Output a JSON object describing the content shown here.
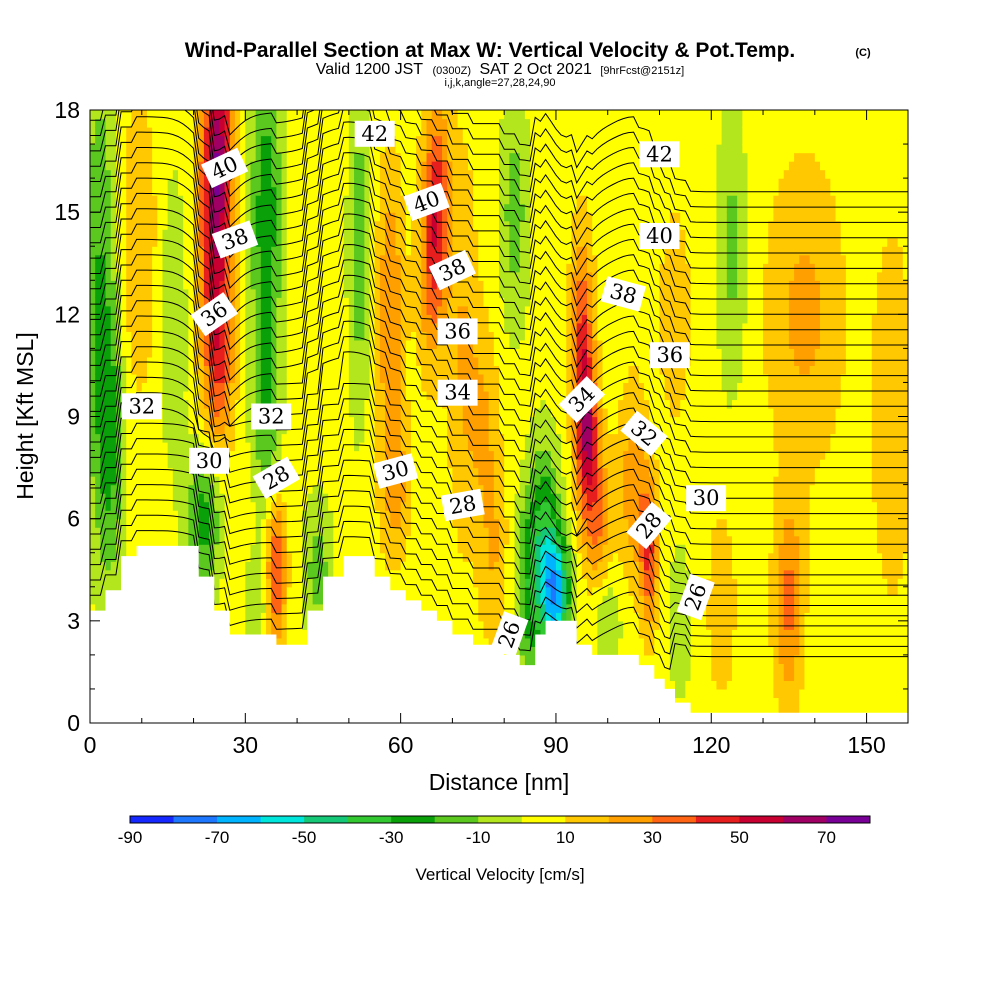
{
  "chart_data": {
    "type": "heatmap",
    "title": "Wind-Parallel Section at Max W: Vertical Velocity & Pot.Temp.",
    "title_tag": "(C)",
    "subtitle_prefix": "Valid 1200 JST",
    "subtitle_utc": "(0300Z)",
    "subtitle_date": "SAT 2 Oct 2021",
    "subtitle_fcst": "[9hrFcst@2151z]",
    "subtitle2": "i,j,k,angle=27,28,24,90",
    "xlabel": "Distance [nm]",
    "ylabel": "Height [Kft MSL]",
    "xlim": [
      0,
      158
    ],
    "ylim": [
      0,
      18
    ],
    "xticks": [
      0,
      30,
      60,
      90,
      120,
      150
    ],
    "yticks": [
      0,
      3,
      6,
      9,
      12,
      15,
      18
    ],
    "colorbar": {
      "title": "Vertical Velocity [cm/s]",
      "ticks": [
        -90,
        -70,
        -50,
        -30,
        -10,
        10,
        30,
        50,
        70
      ],
      "levels": [
        -90,
        -80,
        -70,
        -60,
        -50,
        -40,
        -30,
        -20,
        -10,
        0,
        10,
        20,
        30,
        40,
        50,
        60,
        70
      ],
      "colors": [
        "#1428ff",
        "#1e78ff",
        "#00b4ff",
        "#00e6dc",
        "#14c878",
        "#32c832",
        "#0aa00a",
        "#5ac81e",
        "#b4e61e",
        "#ffff00",
        "#ffc800",
        "#ffa000",
        "#ff6414",
        "#e61e1e",
        "#c80032",
        "#a00064",
        "#780096"
      ]
    },
    "background_velocity": 5,
    "velocity_features": [
      {
        "x": 2,
        "y": 13,
        "w": -25,
        "sx": 2.5,
        "sy": 5
      },
      {
        "x": 4,
        "y": 8,
        "w": -20,
        "sx": 2,
        "sy": 3
      },
      {
        "x": 9,
        "y": 14,
        "w": 15,
        "sx": 3,
        "sy": 3
      },
      {
        "x": 16,
        "y": 12,
        "w": -15,
        "sx": 2,
        "sy": 3
      },
      {
        "x": 24,
        "y": 14.5,
        "w": 42,
        "sx": 2.2,
        "sy": 3
      },
      {
        "x": 25,
        "y": 17,
        "w": 35,
        "sx": 2,
        "sy": 2
      },
      {
        "x": 25,
        "y": 10.5,
        "w": 25,
        "sx": 2,
        "sy": 2
      },
      {
        "x": 34,
        "y": 15,
        "w": -32,
        "sx": 2.2,
        "sy": 3.5
      },
      {
        "x": 34,
        "y": 9,
        "w": -20,
        "sx": 2,
        "sy": 2
      },
      {
        "x": 22,
        "y": 6,
        "w": -30,
        "sx": 2.5,
        "sy": 1.5
      },
      {
        "x": 36,
        "y": 4.5,
        "w": 38,
        "sx": 1.3,
        "sy": 1.5
      },
      {
        "x": 32,
        "y": 3.5,
        "w": -15,
        "sx": 1.5,
        "sy": 1
      },
      {
        "x": 44,
        "y": 4.5,
        "w": -20,
        "sx": 2,
        "sy": 1.5
      },
      {
        "x": 52,
        "y": 14,
        "w": -22,
        "sx": 1.5,
        "sy": 3.5
      },
      {
        "x": 58,
        "y": 12,
        "w": 25,
        "sx": 1.8,
        "sy": 3
      },
      {
        "x": 59,
        "y": 7,
        "w": 18,
        "sx": 2,
        "sy": 1.5
      },
      {
        "x": 67,
        "y": 15.5,
        "w": 35,
        "sx": 1.8,
        "sy": 2
      },
      {
        "x": 66,
        "y": 13,
        "w": 22,
        "sx": 2,
        "sy": 2
      },
      {
        "x": 72,
        "y": 11,
        "w": 15,
        "sx": 2,
        "sy": 4
      },
      {
        "x": 76,
        "y": 9,
        "w": 15,
        "sx": 2,
        "sy": 2
      },
      {
        "x": 82,
        "y": 15,
        "w": -20,
        "sx": 2,
        "sy": 2.5
      },
      {
        "x": 78,
        "y": 5,
        "w": 15,
        "sx": 2,
        "sy": 2
      },
      {
        "x": 85,
        "y": 4,
        "w": -30,
        "sx": 2,
        "sy": 2
      },
      {
        "x": 88,
        "y": 5.5,
        "w": -32,
        "sx": 2,
        "sy": 2
      },
      {
        "x": 90,
        "y": 3.8,
        "w": -65,
        "sx": 1.8,
        "sy": 1.2
      },
      {
        "x": 96,
        "y": 8.5,
        "w": 50,
        "sx": 1.5,
        "sy": 1.5
      },
      {
        "x": 95,
        "y": 11.5,
        "w": 35,
        "sx": 1.5,
        "sy": 2
      },
      {
        "x": 98,
        "y": 6,
        "w": 25,
        "sx": 2,
        "sy": 1.5
      },
      {
        "x": 105,
        "y": 7,
        "w": 22,
        "sx": 2,
        "sy": 2
      },
      {
        "x": 108,
        "y": 5,
        "w": 35,
        "sx": 1.2,
        "sy": 1.5
      },
      {
        "x": 100,
        "y": 3,
        "w": -15,
        "sx": 2,
        "sy": 1
      },
      {
        "x": 114,
        "y": 3,
        "w": -15,
        "sx": 1.5,
        "sy": 1.5
      },
      {
        "x": 113,
        "y": 12,
        "w": 15,
        "sx": 2,
        "sy": 2
      },
      {
        "x": 124,
        "y": 14,
        "w": -18,
        "sx": 2,
        "sy": 3
      },
      {
        "x": 122,
        "y": 3.5,
        "w": 12,
        "sx": 2,
        "sy": 2
      },
      {
        "x": 135,
        "y": 3.5,
        "w": 28,
        "sx": 2,
        "sy": 2
      },
      {
        "x": 138,
        "y": 12,
        "w": 18,
        "sx": 5,
        "sy": 3
      },
      {
        "x": 145,
        "y": 2.5,
        "w": -5,
        "sx": 4,
        "sy": 1.5
      },
      {
        "x": 155,
        "y": 9,
        "w": 12,
        "sx": 3,
        "sy": 4
      }
    ],
    "terrain": [
      [
        0,
        3.3
      ],
      [
        3,
        3.3
      ],
      [
        3,
        3.9
      ],
      [
        6,
        3.9
      ],
      [
        6,
        4.9
      ],
      [
        9,
        4.9
      ],
      [
        9,
        5.2
      ],
      [
        21,
        5.2
      ],
      [
        21,
        4.3
      ],
      [
        24,
        4.3
      ],
      [
        24,
        3.3
      ],
      [
        27,
        3.3
      ],
      [
        27,
        2.6
      ],
      [
        30,
        2.6
      ],
      [
        30,
        2.6
      ],
      [
        36,
        2.6
      ],
      [
        36,
        2.3
      ],
      [
        42,
        2.3
      ],
      [
        42,
        3.3
      ],
      [
        45,
        3.3
      ],
      [
        45,
        4.3
      ],
      [
        49,
        4.3
      ],
      [
        49,
        4.9
      ],
      [
        55,
        4.9
      ],
      [
        55,
        4.3
      ],
      [
        58,
        4.3
      ],
      [
        58,
        3.9
      ],
      [
        61,
        3.9
      ],
      [
        61,
        3.6
      ],
      [
        64,
        3.6
      ],
      [
        64,
        3.3
      ],
      [
        67,
        3.3
      ],
      [
        67,
        3.0
      ],
      [
        70,
        3.0
      ],
      [
        70,
        2.6
      ],
      [
        74,
        2.6
      ],
      [
        74,
        2.3
      ],
      [
        80,
        2.3
      ],
      [
        80,
        2.0
      ],
      [
        83,
        2.0
      ],
      [
        83,
        1.7
      ],
      [
        86,
        1.7
      ],
      [
        86,
        2.6
      ],
      [
        88,
        2.6
      ],
      [
        88,
        3.0
      ],
      [
        94,
        3.0
      ],
      [
        94,
        2.3
      ],
      [
        97,
        2.3
      ],
      [
        97,
        2.0
      ],
      [
        106,
        2.0
      ],
      [
        106,
        1.7
      ],
      [
        109,
        1.7
      ],
      [
        109,
        1.3
      ],
      [
        111,
        1.3
      ],
      [
        111,
        1.0
      ],
      [
        113,
        1.0
      ],
      [
        113,
        0.6
      ],
      [
        116,
        0.6
      ],
      [
        116,
        0.3
      ],
      [
        158,
        0.3
      ]
    ],
    "theta_levels": [
      26,
      26.5,
      27,
      27.5,
      28,
      28.5,
      29,
      29.5,
      30,
      30.5,
      31,
      31.5,
      32,
      32.5,
      33,
      33.5,
      34,
      34.5,
      35,
      35.5,
      36,
      36.5,
      37,
      37.5,
      38,
      38.5,
      39,
      39.5,
      40,
      40.5,
      41,
      41.5,
      42,
      42.5
    ],
    "contour_labels": [
      {
        "text": "42",
        "x": 55,
        "y": 17.3,
        "rot": 0
      },
      {
        "text": "42",
        "x": 110,
        "y": 16.7,
        "rot": 0
      },
      {
        "text": "40",
        "x": 26,
        "y": 16.3,
        "rot": -25
      },
      {
        "text": "40",
        "x": 65,
        "y": 15.3,
        "rot": -20
      },
      {
        "text": "40",
        "x": 110,
        "y": 14.3,
        "rot": 0
      },
      {
        "text": "38",
        "x": 28,
        "y": 14.2,
        "rot": -20
      },
      {
        "text": "38",
        "x": 70,
        "y": 13.3,
        "rot": -25
      },
      {
        "text": "38",
        "x": 103,
        "y": 12.6,
        "rot": 15
      },
      {
        "text": "36",
        "x": 24,
        "y": 12.0,
        "rot": -35
      },
      {
        "text": "36",
        "x": 71,
        "y": 11.5,
        "rot": 0
      },
      {
        "text": "36",
        "x": 112,
        "y": 10.8,
        "rot": 0
      },
      {
        "text": "34",
        "x": 71,
        "y": 9.7,
        "rot": 0
      },
      {
        "text": "34",
        "x": 95,
        "y": 9.5,
        "rot": -45
      },
      {
        "text": "32",
        "x": 10,
        "y": 9.3,
        "rot": 0
      },
      {
        "text": "32",
        "x": 35,
        "y": 9.0,
        "rot": 0
      },
      {
        "text": "32",
        "x": 107,
        "y": 8.5,
        "rot": 40
      },
      {
        "text": "30",
        "x": 23,
        "y": 7.7,
        "rot": 0
      },
      {
        "text": "30",
        "x": 59,
        "y": 7.4,
        "rot": -15
      },
      {
        "text": "30",
        "x": 119,
        "y": 6.6,
        "rot": 0
      },
      {
        "text": "28",
        "x": 36,
        "y": 7.2,
        "rot": -30
      },
      {
        "text": "28",
        "x": 72,
        "y": 6.4,
        "rot": -10
      },
      {
        "text": "28",
        "x": 108,
        "y": 5.8,
        "rot": -50
      },
      {
        "text": "26",
        "x": 81,
        "y": 2.6,
        "rot": -70
      },
      {
        "text": "26",
        "x": 117,
        "y": 3.7,
        "rot": -70
      }
    ]
  }
}
